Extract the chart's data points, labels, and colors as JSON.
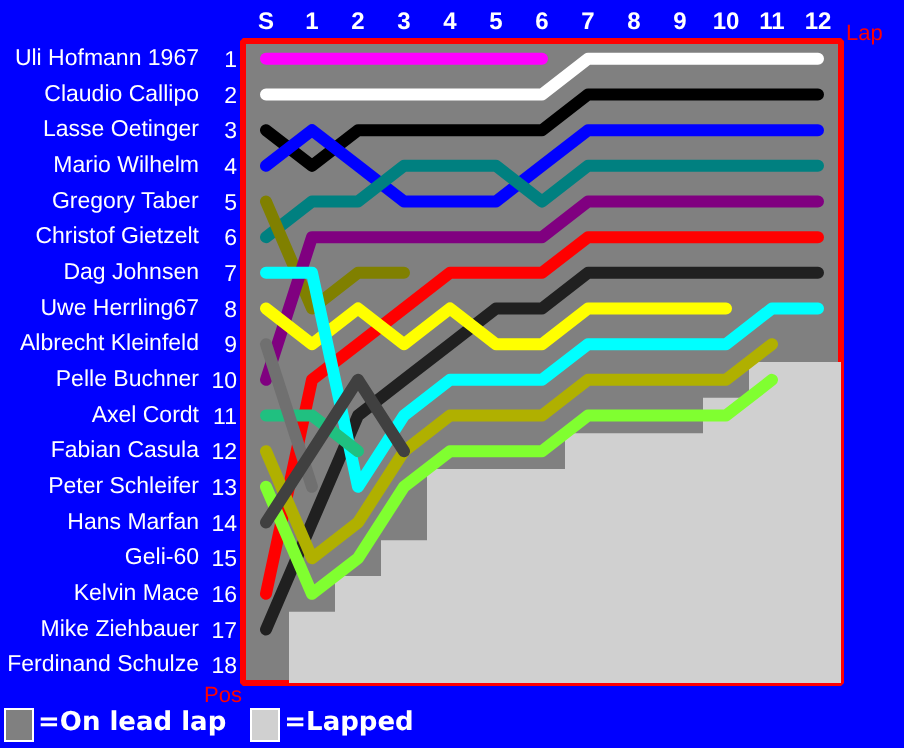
{
  "chart_data": {
    "type": "line",
    "xlabel": "Lap",
    "ylabel": "Pos",
    "annotations": [
      "Uli Hofmann 1967",
      "Claudio Callipo",
      "Lasse Oetinger",
      "Mario Wilhelm",
      "Gregory Taber",
      "Christof Gietzelt",
      "Dag Johnsen",
      "Uwe Herrling67",
      "Albrecht Kleinfeld",
      "Pelle Buchner",
      "Axel Cordt",
      "Fabian Casula",
      "Peter Schleifer",
      "Hans Marfan",
      "Geli-60",
      "Kelvin Mace",
      "Mike Ziehbauer",
      "Ferdinand Schulze",
      "=On lead lap"
    ],
    "legend": "bottom",
    "grid": false,
    "marker": "none",
    "line_style": "solid",
    "x": [
      0,
      1,
      2,
      3,
      4,
      5,
      6,
      7,
      8,
      9,
      10,
      11,
      12
    ],
    "xlim": [
      -0.5,
      12.5
    ],
    "xticks": [
      {
        "value": 0,
        "label": "S"
      },
      1,
      2,
      3,
      4,
      5,
      6,
      7,
      8,
      9,
      10,
      11,
      12
    ],
    "ylim": [
      18.5,
      0.5
    ],
    "yticks": [
      1,
      2,
      3,
      4,
      5,
      6,
      7,
      8,
      9,
      10,
      11,
      12,
      13,
      14,
      15,
      16,
      17,
      18
    ],
    "series": [
      {
        "name": "=Lapped",
        "type": "bar",
        "color": "#d0d0d0",
        "base": [
          null,
          16.5,
          15.5,
          14.5,
          12.5,
          12.5,
          12.5,
          11.5,
          11.5,
          11.5,
          10.5,
          9.5,
          9.5
        ],
        "values": [
          null,
          2,
          3,
          4,
          6,
          6,
          6,
          7,
          7,
          7,
          8,
          9,
          9
        ]
      },
      {
        "color": "#ff00ff",
        "values": [
          1,
          1,
          1,
          1,
          1,
          1,
          1,
          null,
          null,
          null,
          null,
          null,
          null
        ]
      },
      {
        "color": "#ffffff",
        "values": [
          2,
          2,
          2,
          2,
          2,
          2,
          2,
          1,
          1,
          1,
          1,
          1,
          1
        ]
      },
      {
        "color": "#000000",
        "values": [
          3,
          4,
          3,
          3,
          3,
          3,
          3,
          2,
          2,
          2,
          2,
          2,
          2
        ]
      },
      {
        "color": "#0000ff",
        "values": [
          4,
          3,
          4,
          5,
          5,
          5,
          4,
          3,
          3,
          3,
          3,
          3,
          3
        ]
      },
      {
        "color": "#008080",
        "values": [
          6,
          5,
          5,
          4,
          4,
          4,
          5,
          4,
          4,
          4,
          4,
          4,
          4
        ]
      },
      {
        "color": "#808000",
        "values": [
          5,
          8,
          7,
          7,
          null,
          null,
          null,
          null,
          null,
          null,
          null,
          null,
          null
        ]
      },
      {
        "color": "#800080",
        "values": [
          10,
          6,
          6,
          6,
          6,
          6,
          6,
          5,
          5,
          5,
          5,
          5,
          5
        ]
      },
      {
        "color": "#ff0000",
        "values": [
          16,
          10,
          9,
          8,
          7,
          7,
          7,
          6,
          6,
          6,
          6,
          6,
          6
        ]
      },
      {
        "color": "#202020",
        "values": [
          17,
          14,
          11,
          10,
          9,
          8,
          8,
          7,
          7,
          7,
          7,
          7,
          7
        ]
      },
      {
        "color": "#ffff00",
        "values": [
          8,
          9,
          8,
          9,
          8,
          9,
          9,
          8,
          8,
          8,
          8,
          null,
          null
        ]
      },
      {
        "color": "#00ffff",
        "values": [
          7,
          7,
          13,
          11,
          10,
          10,
          10,
          9,
          9,
          9,
          9,
          8,
          8
        ]
      },
      {
        "color": "#b0b000",
        "values": [
          12,
          15,
          14,
          12,
          11,
          11,
          11,
          10,
          10,
          10,
          10,
          9,
          null
        ]
      },
      {
        "color": "#80ff30",
        "values": [
          13,
          16,
          15,
          13,
          12,
          12,
          12,
          11,
          11,
          11,
          11,
          10,
          null
        ]
      },
      {
        "color": "#20c080",
        "values": [
          11,
          11,
          12,
          null,
          null,
          null,
          null,
          null,
          null,
          null,
          null,
          null,
          null
        ]
      },
      {
        "color": "#707070",
        "values": [
          9,
          13,
          null,
          null,
          null,
          null,
          null,
          null,
          null,
          null,
          null,
          null,
          null
        ]
      },
      {
        "color": "#404040",
        "values": [
          14,
          12,
          10,
          12,
          null,
          null,
          null,
          null,
          null,
          null,
          null,
          null,
          null
        ]
      }
    ]
  }
}
